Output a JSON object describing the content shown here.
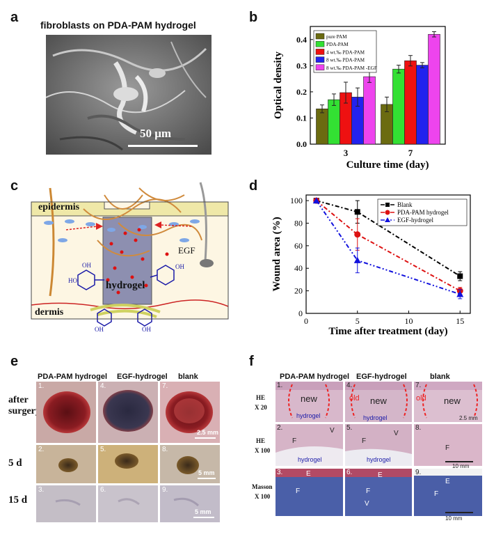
{
  "panels": {
    "a": {
      "label": "a",
      "title": "fibroblasts on PDA-PAM hydrogel",
      "scale_bar": "50 μm"
    },
    "b": {
      "label": "b"
    },
    "c": {
      "label": "c",
      "epidermis": "epidermis",
      "dermis": "dermis",
      "hydrogel": "hydrogel",
      "egf": "EGF",
      "oh": "OH",
      "ho": "HO"
    },
    "d": {
      "label": "d"
    },
    "e": {
      "label": "e",
      "headers": [
        "PDA-PAM hydrogel",
        "EGF-hydrogel",
        "blank"
      ],
      "rows": [
        "after surgery",
        "5 d",
        "15 d"
      ],
      "numbers": [
        "1.",
        "4.",
        "7.",
        "2.",
        "5.",
        "8.",
        "3.",
        "6.",
        "9."
      ],
      "scale_bars": [
        "2.5 mm",
        "5 mm",
        "5 mm"
      ]
    },
    "f": {
      "label": "f",
      "headers": [
        "PDA-PAM hydrogel",
        "EGF-hydrogel",
        "blank"
      ],
      "rows": [
        [
          "HE",
          "X 20"
        ],
        [
          "HE",
          "X 100"
        ],
        [
          "Masson",
          "X 100"
        ]
      ],
      "numbers": [
        "1.",
        "4.",
        "7.",
        "2.",
        "5.",
        "8.",
        "3.",
        "6.",
        "9."
      ],
      "tags": {
        "new": "new",
        "old": "old",
        "hydrogel": "hydrogel",
        "E": "E",
        "F": "F",
        "V": "V"
      },
      "scale_bars": [
        "2.5 mm",
        "10 mm",
        "10 mm"
      ]
    }
  },
  "chart_data": [
    {
      "type": "bar",
      "panel": "b",
      "title": "",
      "xlabel": "Culture time (day)",
      "ylabel": "Optical density",
      "categories": [
        "3",
        "7"
      ],
      "ylim": [
        0.0,
        0.45
      ],
      "yticks": [
        "0.0",
        "0.1",
        "0.2",
        "0.3",
        "0.4"
      ],
      "series": [
        {
          "name": "pure PAM",
          "color": "#6b6b10",
          "values": [
            0.135,
            0.152
          ],
          "errors": [
            0.015,
            0.028
          ]
        },
        {
          "name": "PDA-PAM",
          "color": "#33e033",
          "values": [
            0.17,
            0.287
          ],
          "errors": [
            0.022,
            0.015
          ]
        },
        {
          "name": "4 wt.‰ PDA-PAM",
          "color": "#ee1111",
          "values": [
            0.197,
            0.319
          ],
          "errors": [
            0.04,
            0.02
          ]
        },
        {
          "name": "8 wt.‰ PDA-PAM",
          "color": "#2222ee",
          "values": [
            0.18,
            0.302
          ],
          "errors": [
            0.035,
            0.01
          ]
        },
        {
          "name": "8 wt.‰ PDA-PAM -EGF",
          "color": "#ee44ee",
          "values": [
            0.258,
            0.42
          ],
          "errors": [
            0.022,
            0.01
          ]
        }
      ],
      "legend": "top-left"
    },
    {
      "type": "line",
      "panel": "d",
      "title": "",
      "xlabel": "Time after treatment (day)",
      "ylabel": "Wound area (%)",
      "xlim": [
        0,
        16
      ],
      "ylim": [
        0,
        105
      ],
      "xticks": [
        "0",
        "5",
        "10",
        "15"
      ],
      "yticks": [
        "0",
        "20",
        "40",
        "60",
        "80",
        "100"
      ],
      "series": [
        {
          "name": "Blank",
          "color": "#000000",
          "marker": "square",
          "x": [
            1,
            5,
            15
          ],
          "y": [
            100,
            90,
            33
          ],
          "errors": [
            0,
            10,
            4
          ]
        },
        {
          "name": "PDA-PAM hydrogel",
          "color": "#dd1111",
          "marker": "circle",
          "x": [
            1,
            5,
            15
          ],
          "y": [
            100,
            70,
            20
          ],
          "errors": [
            0,
            14,
            3
          ]
        },
        {
          "name": "EGF-hydrogel",
          "color": "#1111dd",
          "marker": "triangle",
          "x": [
            1,
            5,
            15
          ],
          "y": [
            100,
            47,
            17
          ],
          "errors": [
            0,
            11,
            4
          ]
        }
      ],
      "legend": "top-right"
    }
  ]
}
